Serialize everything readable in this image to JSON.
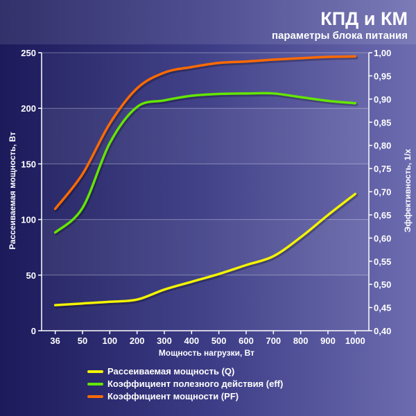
{
  "chart_data": {
    "type": "line",
    "title": "КПД и КМ",
    "subtitle": "параметры блока питания",
    "xlabel": "Мощность нагрузки, Вт",
    "ylabel_left": "Рассеиваемая мощность, Вт",
    "ylabel_right": "Эффективность, 1/х",
    "categories": [
      "36",
      "50",
      "100",
      "200",
      "300",
      "400",
      "500",
      "600",
      "700",
      "800",
      "900",
      "1000"
    ],
    "ylim_left": [
      0,
      250
    ],
    "yticks_left": [
      "0",
      "50",
      "100",
      "150",
      "200",
      "250"
    ],
    "ylim_right": [
      0.4,
      1.0
    ],
    "yticks_right": [
      "0,40",
      "0,45",
      "0,50",
      "0,55",
      "0,60",
      "0,65",
      "0,70",
      "0,75",
      "0,80",
      "0,85",
      "0,90",
      "0,95",
      "1,00"
    ],
    "grid": true,
    "legend_position": "bottom",
    "series": [
      {
        "name": "Рассеиваемая мощность (Q)",
        "axis": "left",
        "color": "#f4f400",
        "values": [
          23,
          24.5,
          26,
          28,
          37,
          44,
          51,
          59,
          67,
          84,
          104,
          123
        ]
      },
      {
        "name": "Коэффициент полезного действия (eff)",
        "axis": "right",
        "color": "#64e600",
        "values": [
          0.612,
          0.665,
          0.805,
          0.883,
          0.897,
          0.907,
          0.911,
          0.912,
          0.912,
          0.904,
          0.896,
          0.891
        ]
      },
      {
        "name": "Коэффициент мощности (PF)",
        "axis": "right",
        "color": "#ff6a00",
        "values": [
          0.663,
          0.738,
          0.847,
          0.923,
          0.957,
          0.969,
          0.978,
          0.981,
          0.985,
          0.988,
          0.991,
          0.992
        ]
      }
    ]
  }
}
